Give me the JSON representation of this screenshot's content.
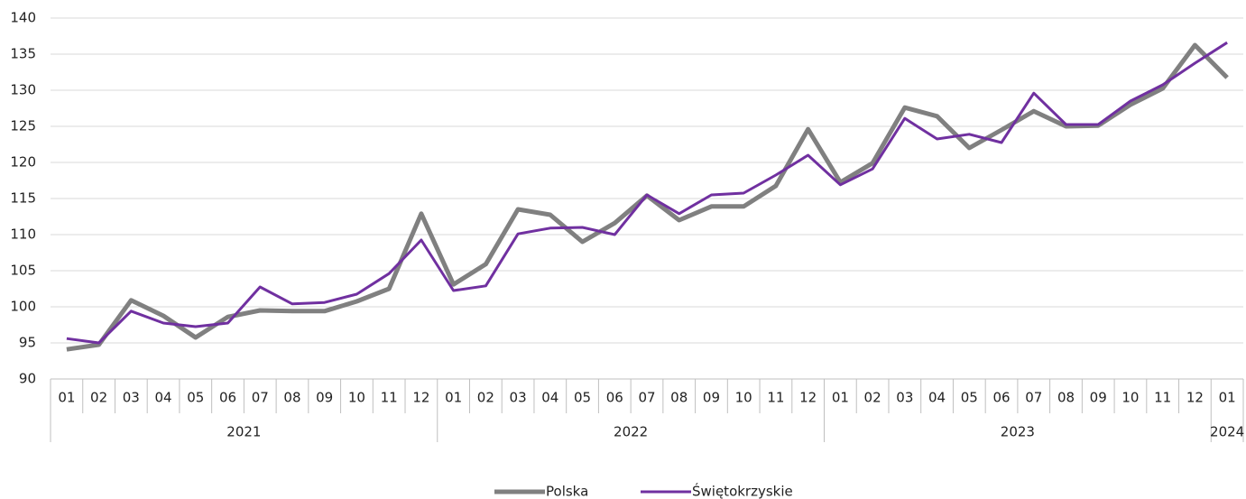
{
  "chart_data": {
    "type": "line",
    "categories": [
      "01",
      "02",
      "03",
      "04",
      "05",
      "06",
      "07",
      "08",
      "09",
      "10",
      "11",
      "12",
      "01",
      "02",
      "03",
      "04",
      "05",
      "06",
      "07",
      "08",
      "09",
      "10",
      "11",
      "12",
      "01",
      "02",
      "03",
      "04",
      "05",
      "06",
      "07",
      "08",
      "09",
      "10",
      "11",
      "12",
      "01"
    ],
    "years": [
      "2021",
      "2022",
      "2023",
      "2024"
    ],
    "series": [
      {
        "name": "Polska",
        "color": "#808080",
        "values": [
          94.1,
          94.75,
          100.9,
          98.75,
          95.75,
          98.6,
          99.5,
          99.4,
          99.4,
          100.75,
          102.5,
          112.9,
          103.1,
          105.9,
          113.5,
          112.75,
          109,
          111.6,
          115.4,
          112,
          113.9,
          113.9,
          116.75,
          124.6,
          117.25,
          119.9,
          127.6,
          126.4,
          122,
          124.5,
          127.1,
          125,
          125.1,
          128,
          130.25,
          136.25,
          131.75
        ]
      },
      {
        "name": "Świętokrzyskie",
        "color": "#7030a0",
        "values": [
          95.6,
          95,
          99.4,
          97.75,
          97.25,
          97.75,
          102.75,
          100.4,
          100.6,
          101.75,
          104.6,
          109.25,
          102.25,
          102.9,
          110.1,
          110.9,
          111,
          110,
          115.5,
          112.9,
          115.5,
          115.75,
          118.25,
          121,
          116.9,
          119.1,
          126.1,
          123.25,
          123.9,
          122.75,
          129.6,
          125.25,
          125.25,
          128.5,
          130.75,
          133.75,
          136.6
        ]
      }
    ],
    "ylim": [
      90,
      140
    ],
    "yticks": [
      90,
      95,
      100,
      105,
      110,
      115,
      120,
      125,
      130,
      135,
      140
    ],
    "grid": true
  }
}
